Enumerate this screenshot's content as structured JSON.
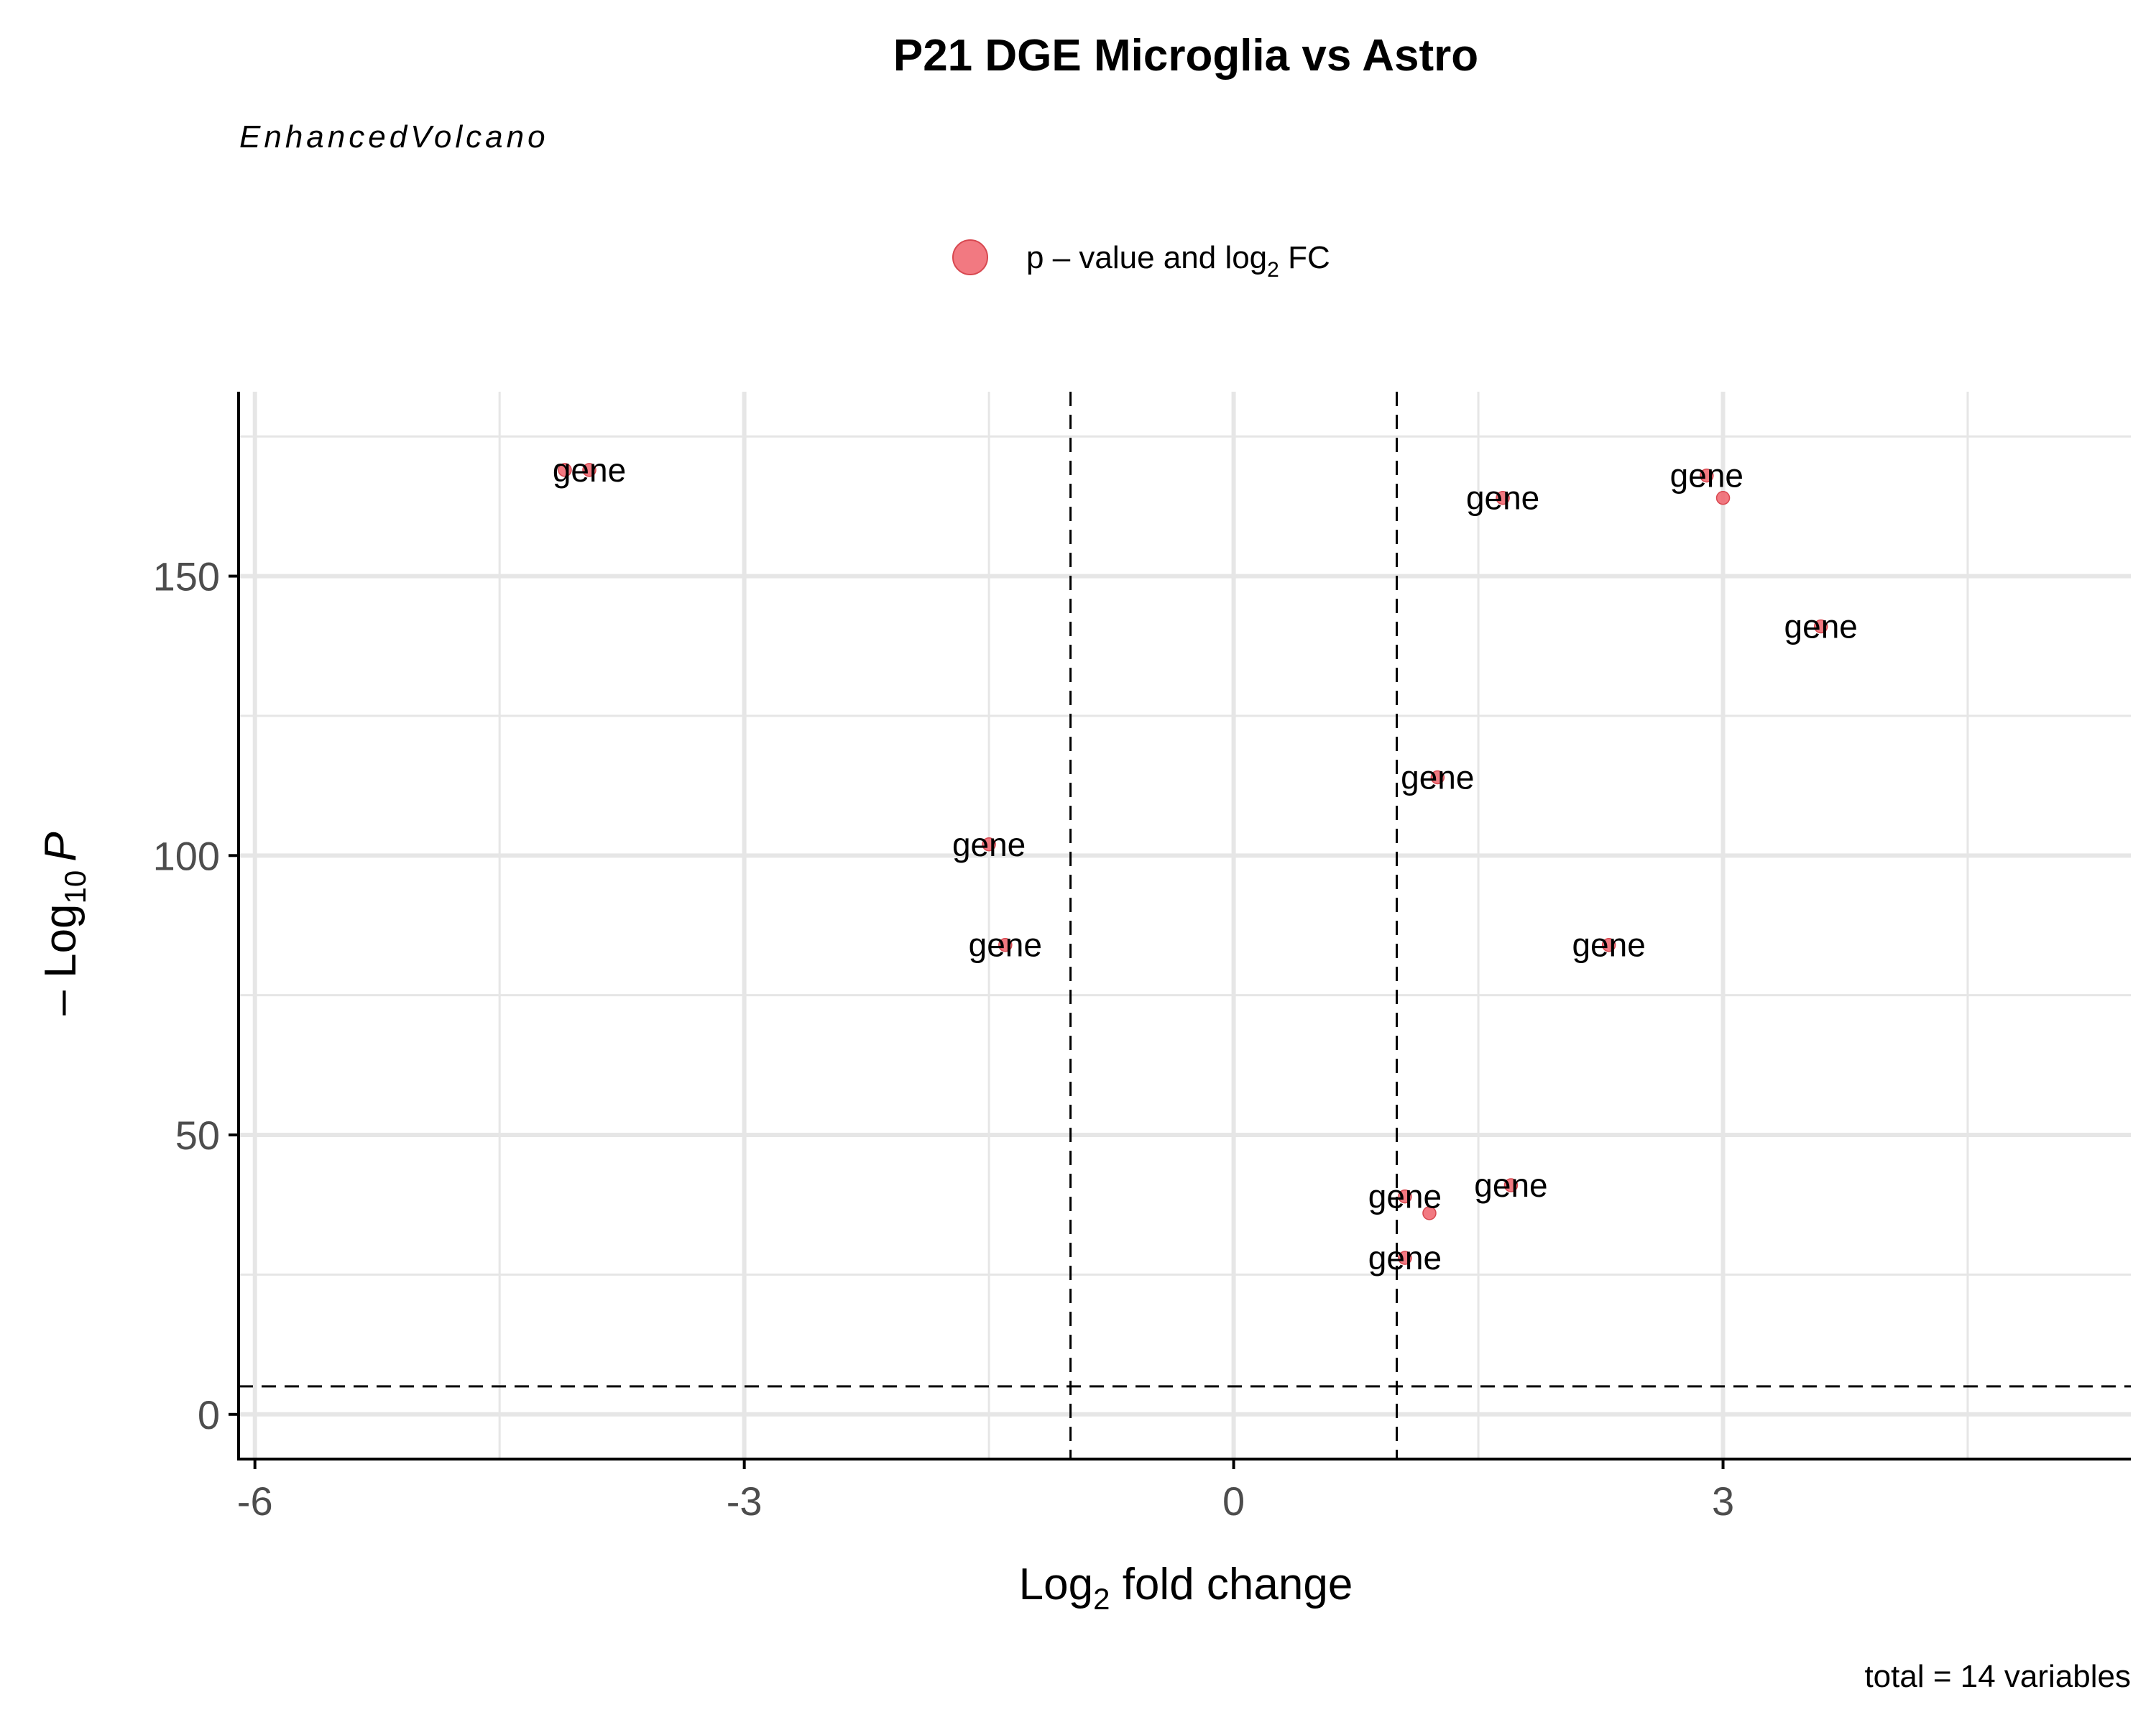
{
  "chart_data": {
    "type": "scatter",
    "title": "P21 DGE Microglia vs Astro",
    "subtitle": "EnhancedVolcano",
    "caption": "total = 14 variables",
    "legend": {
      "position": "top",
      "entries": [
        {
          "label": "p – value and log",
          "subscript": "2",
          "suffix": " FC",
          "color": "#F0626B"
        }
      ]
    },
    "xlabel": {
      "main": "Log",
      "sub": "2",
      "rest": " fold change"
    },
    "ylabel": {
      "prefix": "– Log",
      "sub": "10",
      "var": "P"
    },
    "xlim": [
      -6.1,
      5.5
    ],
    "ylim": [
      -8,
      183
    ],
    "x_ticks": [
      {
        "value": -6,
        "label": "-6"
      },
      {
        "value": -3,
        "label": "-3"
      },
      {
        "value": 0,
        "label": "0"
      },
      {
        "value": 3,
        "label": "3"
      }
    ],
    "x_minor": [
      -4.5,
      -1.5,
      1.5,
      4.5
    ],
    "y_ticks": [
      {
        "value": 0,
        "label": "0"
      },
      {
        "value": 50,
        "label": "50"
      },
      {
        "value": 100,
        "label": "100"
      },
      {
        "value": 150,
        "label": "150"
      }
    ],
    "y_minor": [
      25,
      75,
      125,
      175
    ],
    "fc_cutoff": [
      -1,
      1
    ],
    "p_cutoff": 5,
    "grid": true,
    "points": [
      {
        "x": -4.1,
        "y": 169,
        "label": ""
      },
      {
        "x": -3.95,
        "y": 169,
        "label": "gene"
      },
      {
        "x": -1.5,
        "y": 102,
        "label": "gene"
      },
      {
        "x": -1.4,
        "y": 84,
        "label": "gene"
      },
      {
        "x": 1.05,
        "y": 39,
        "label": "gene"
      },
      {
        "x": 1.2,
        "y": 36,
        "label": ""
      },
      {
        "x": 1.05,
        "y": 28,
        "label": "gene"
      },
      {
        "x": 1.25,
        "y": 114,
        "label": "gene"
      },
      {
        "x": 1.7,
        "y": 41,
        "label": "gene"
      },
      {
        "x": 1.65,
        "y": 164,
        "label": "gene"
      },
      {
        "x": 2.3,
        "y": 84,
        "label": "gene"
      },
      {
        "x": 2.9,
        "y": 168,
        "label": "gene"
      },
      {
        "x": 3.0,
        "y": 164,
        "label": ""
      },
      {
        "x": 3.6,
        "y": 141,
        "label": "gene"
      }
    ]
  }
}
